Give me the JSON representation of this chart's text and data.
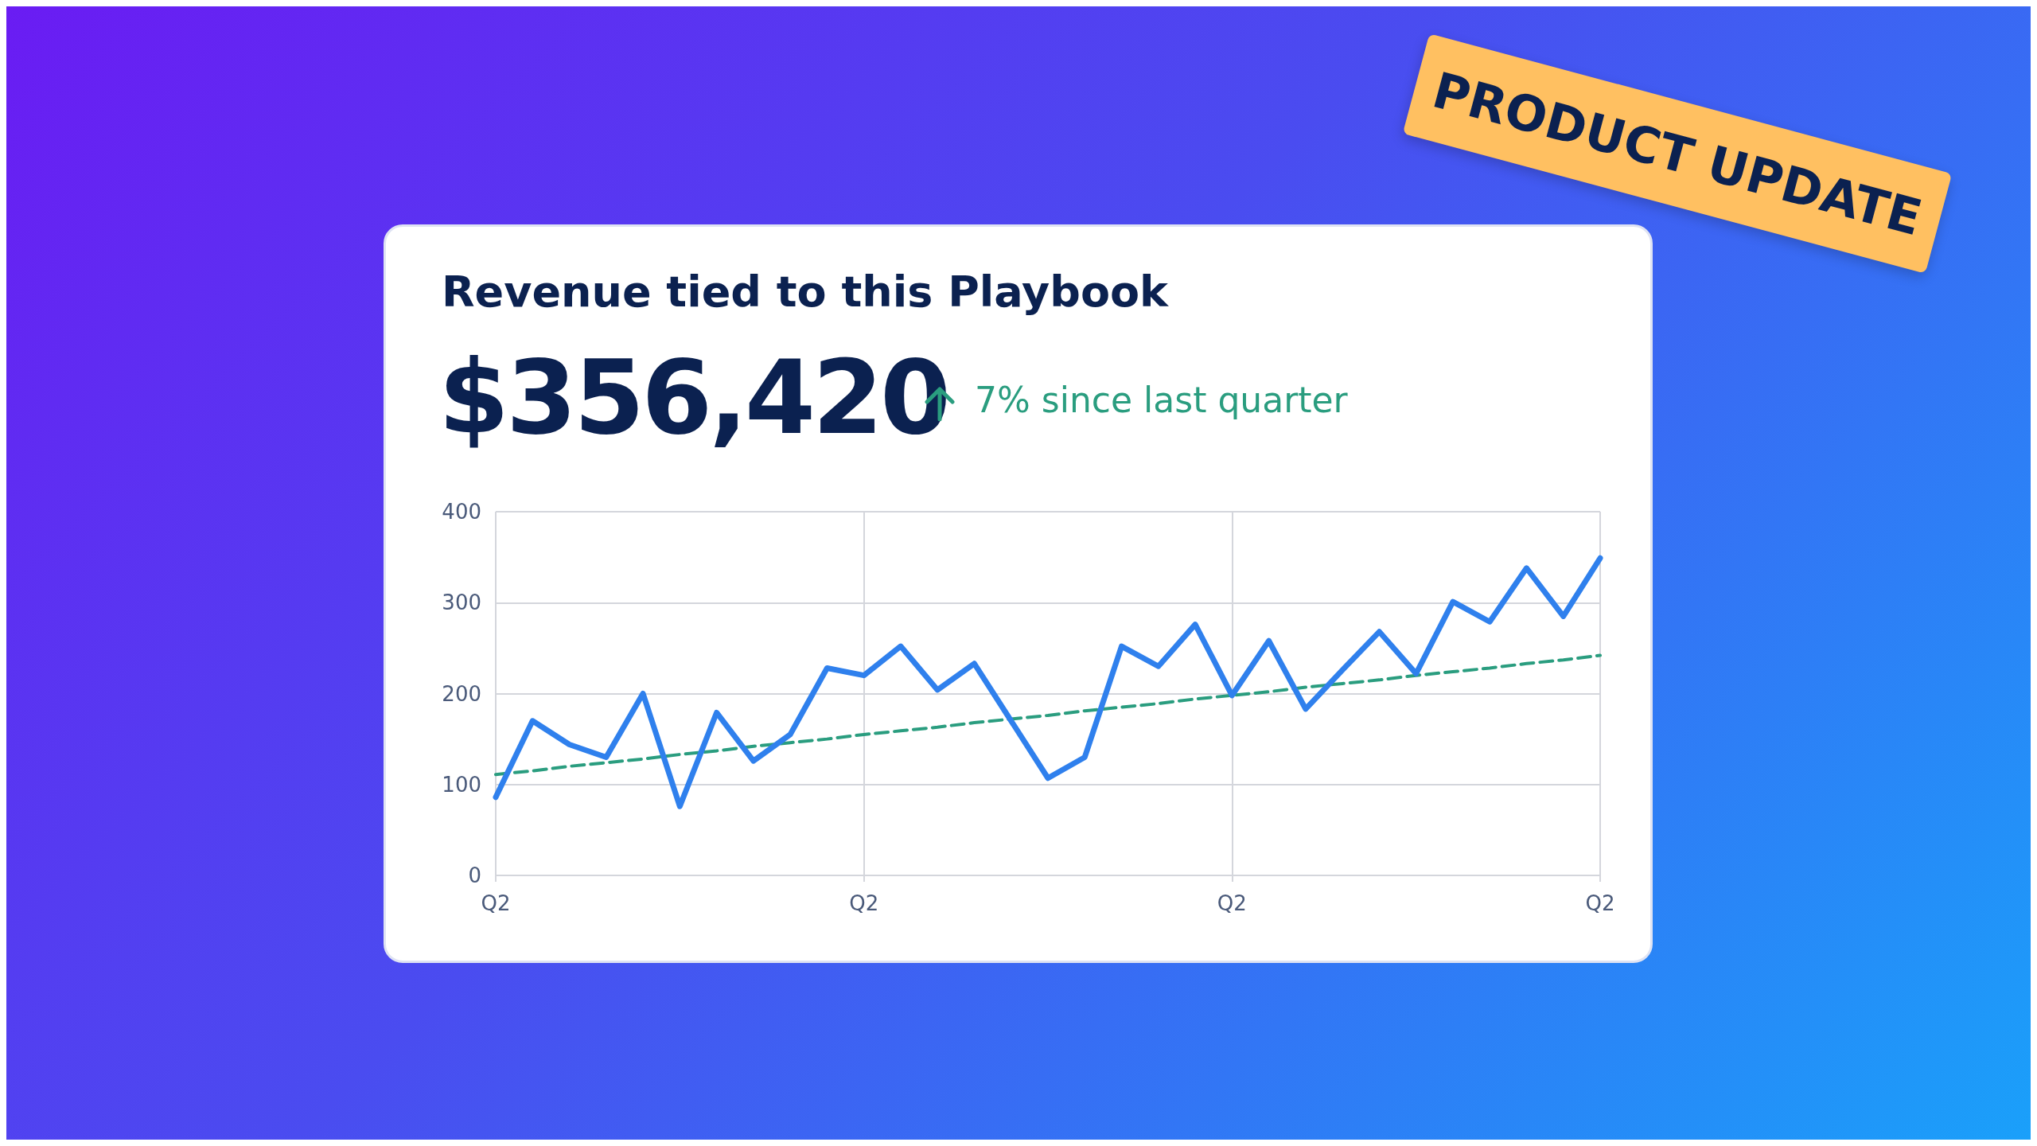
{
  "chart_data": {
    "type": "line",
    "title": "Revenue tied to this Playbook",
    "subtitle": "$356,420",
    "annotations": [
      "7% since last quarter",
      "PRODUCT UPDATE"
    ],
    "categories": [
      "Q2",
      null,
      null,
      null,
      null,
      null,
      null,
      null,
      null,
      null,
      "Q2",
      null,
      null,
      null,
      null,
      null,
      null,
      null,
      null,
      null,
      "Q2",
      null,
      null,
      null,
      null,
      null,
      null,
      null,
      null,
      null,
      "Q2"
    ],
    "series": [
      {
        "color": "#2f80ed",
        "values": [
          86,
          170,
          144,
          130,
          200,
          76,
          179,
          126,
          155,
          228,
          220,
          252,
          204,
          233,
          170,
          107,
          130,
          252,
          230,
          276,
          198,
          258,
          183,
          226,
          268,
          222,
          301,
          279,
          338,
          285,
          349
        ]
      },
      {
        "type": "line",
        "color": "#2a9d7f",
        "line_style": "dashed",
        "values": [
          111,
          115,
          120,
          124,
          128,
          133,
          137,
          142,
          146,
          150,
          155,
          159,
          163,
          168,
          172,
          176,
          181,
          185,
          189,
          194,
          198,
          202,
          207,
          211,
          215,
          220,
          224,
          228,
          233,
          237,
          242
        ]
      }
    ],
    "ylim": [
      0,
      400
    ],
    "yticks": [
      0,
      100,
      200,
      300,
      400
    ],
    "grid": true
  }
}
